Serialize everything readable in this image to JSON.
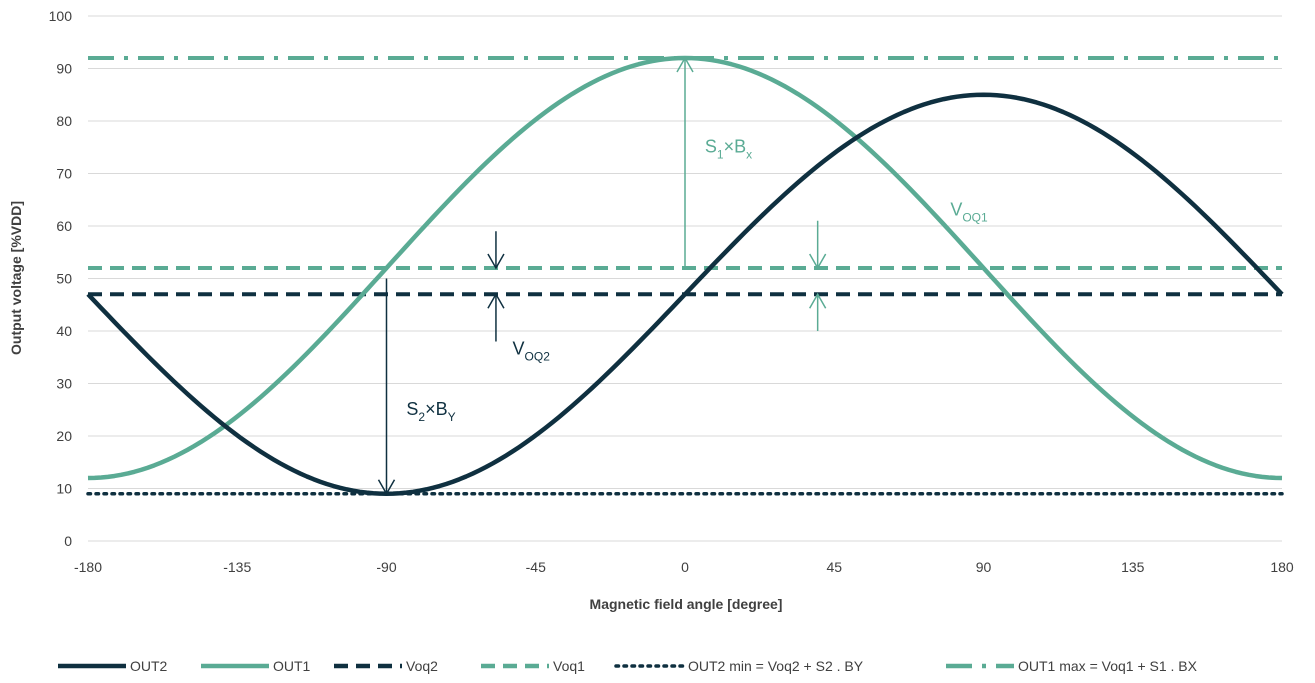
{
  "chart_data": {
    "type": "line",
    "title": "",
    "xlabel": "Magnetic field angle [degree]",
    "ylabel": "Output voltage [%VDD]",
    "xlim": [
      -180,
      180
    ],
    "ylim": [
      0,
      100
    ],
    "x_ticks": [
      "-180",
      "-135",
      "-90",
      "-45",
      "0",
      "45",
      "90",
      "135",
      "180"
    ],
    "y_ticks": [
      "0",
      "10",
      "20",
      "30",
      "40",
      "50",
      "60",
      "70",
      "80",
      "90",
      "100"
    ],
    "grid": "horizontal",
    "legend_position": "bottom",
    "colors": {
      "dark": "#0f3040",
      "teal": "#5aab94"
    },
    "series": [
      {
        "name": "OUT2",
        "style": "solid",
        "color": "#0f3040",
        "formula": "47 + 38*sin(x)",
        "x": [
          -180,
          -135,
          -90,
          -45,
          0,
          45,
          90,
          135,
          180
        ],
        "values": [
          47,
          20.1,
          9,
          20.1,
          47,
          73.9,
          85,
          73.9,
          47
        ]
      },
      {
        "name": "OUT1",
        "style": "solid",
        "color": "#5aab94",
        "formula": "52 + 40*cos(x)",
        "x": [
          -180,
          -135,
          -90,
          -45,
          0,
          45,
          90,
          135,
          180
        ],
        "values": [
          12,
          23.7,
          52,
          80.3,
          92,
          80.3,
          52,
          23.7,
          12
        ]
      },
      {
        "name": "Voq2",
        "style": "dash",
        "color": "#0f3040",
        "x": [
          -180,
          180
        ],
        "values": [
          47,
          47
        ]
      },
      {
        "name": "Voq1",
        "style": "dash",
        "color": "#5aab94",
        "x": [
          -180,
          180
        ],
        "values": [
          52,
          52
        ]
      },
      {
        "name": "OUT2 min = Voq2 + S2 . BY",
        "style": "dot",
        "color": "#0f3040",
        "x": [
          -180,
          180
        ],
        "values": [
          9,
          9
        ]
      },
      {
        "name": "OUT1 max = Voq1 + S1 . BX",
        "style": "dashdot",
        "color": "#5aab94",
        "x": [
          -180,
          180
        ],
        "values": [
          92,
          92
        ]
      }
    ],
    "annotations": [
      {
        "main": "S",
        "sub1": "1",
        "mid": "×B",
        "sub2": "x",
        "color": "#5aab94",
        "x": 6,
        "y": 74
      },
      {
        "main": "V",
        "sub1": "OQ1",
        "mid": "",
        "sub2": "",
        "color": "#5aab94",
        "x": 80,
        "y": 62
      },
      {
        "main": "V",
        "sub1": "OQ2",
        "mid": "",
        "sub2": "",
        "color": "#0f3040",
        "x": -52,
        "y": 35.5
      },
      {
        "main": "S",
        "sub1": "2",
        "mid": "×B",
        "sub2": "Y",
        "color": "#0f3040",
        "x": -84,
        "y": 24
      }
    ]
  }
}
